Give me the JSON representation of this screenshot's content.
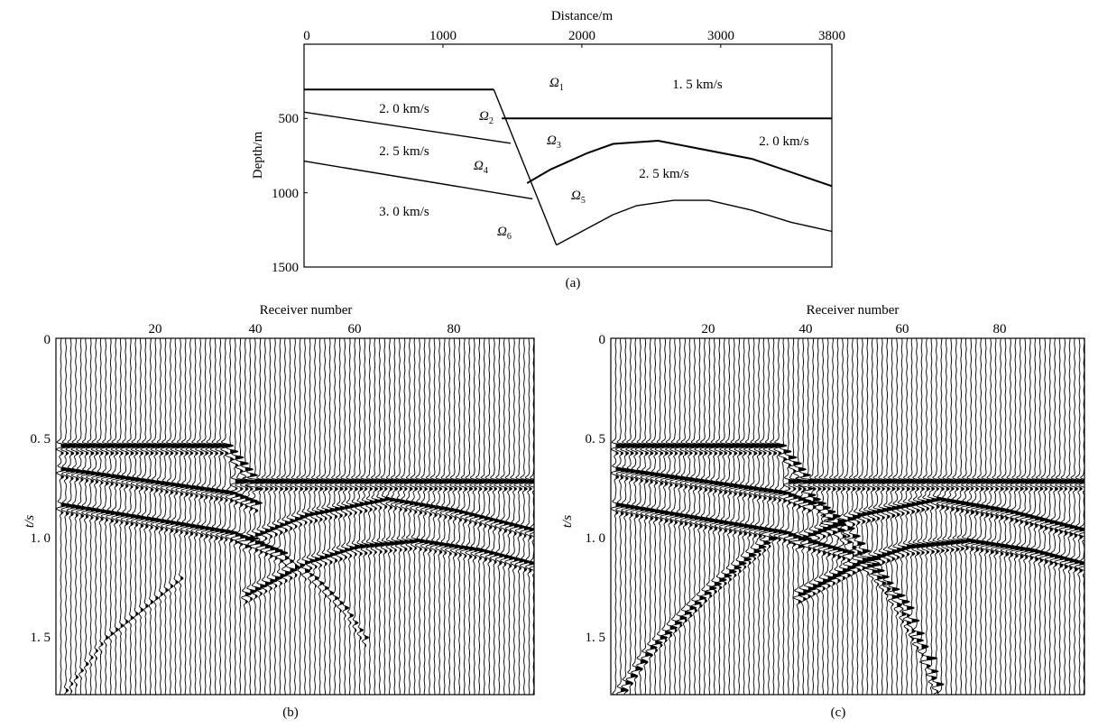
{
  "panel_a": {
    "caption": "(a)",
    "xlabel": "Distance/m",
    "ylabel": "Depth/m",
    "xticks": [
      "0",
      "1000",
      "2000",
      "3000",
      "3800"
    ],
    "yticks": [
      "500",
      "1000",
      "1500"
    ],
    "xlim": [
      0,
      3800
    ],
    "ylim": [
      0,
      1500
    ],
    "regions": [
      {
        "symbol": "Ω",
        "index": "1"
      },
      {
        "symbol": "Ω",
        "index": "2"
      },
      {
        "symbol": "Ω",
        "index": "3"
      },
      {
        "symbol": "Ω",
        "index": "4"
      },
      {
        "symbol": "Ω",
        "index": "5"
      },
      {
        "symbol": "Ω",
        "index": "6"
      }
    ],
    "velocities": [
      "1. 5 km/s",
      "2. 0 km/s",
      "2. 0 km/s",
      "2. 5 km/s",
      "2. 5 km/s",
      "3. 0 km/s"
    ],
    "boundaries": [
      {
        "name": "top-left",
        "points": [
          [
            0,
            305
          ],
          [
            1366,
            305
          ]
        ]
      },
      {
        "name": "top-right",
        "points": [
          [
            1423,
            500
          ],
          [
            3800,
            500
          ]
        ]
      },
      {
        "name": "fault",
        "points": [
          [
            1366,
            305
          ],
          [
            1817,
            1352
          ]
        ]
      },
      {
        "name": "omega2-omega4",
        "points": [
          [
            0,
            457
          ],
          [
            1487,
            667
          ]
        ]
      },
      {
        "name": "omega4-omega6",
        "points": [
          [
            0,
            787
          ],
          [
            1645,
            1041
          ]
        ]
      },
      {
        "name": "omega3-omega5",
        "points": [
          [
            1606,
            935
          ],
          [
            1775,
            843
          ],
          [
            2042,
            732
          ],
          [
            2225,
            671
          ],
          [
            2549,
            650
          ],
          [
            3225,
            772
          ],
          [
            3800,
            955
          ]
        ]
      },
      {
        "name": "omega5-omega6",
        "points": [
          [
            1817,
            1352
          ],
          [
            2225,
            1148
          ],
          [
            2394,
            1087
          ],
          [
            2662,
            1051
          ],
          [
            2915,
            1051
          ],
          [
            3225,
            1118
          ],
          [
            3507,
            1199
          ],
          [
            3800,
            1260
          ]
        ]
      }
    ]
  },
  "chart_data": [
    {
      "type": "wiggle",
      "caption": "(b)",
      "xlabel": "Receiver number",
      "ylabel": "t/s",
      "xticks": [
        "20",
        "40",
        "60",
        "80"
      ],
      "yticks": [
        "0",
        "0. 5",
        "1. 0",
        "1. 5"
      ],
      "receivers": [
        1,
        96
      ],
      "tlim": [
        0,
        1.8
      ],
      "events": [
        {
          "amp": 1.0,
          "picks": [
            [
              1,
              0.53
            ],
            [
              34,
              0.53
            ],
            [
              40,
              0.71
            ]
          ]
        },
        {
          "amp": 1.0,
          "picks": [
            [
              36,
              0.71
            ],
            [
              96,
              0.71
            ]
          ]
        },
        {
          "amp": 0.9,
          "picks": [
            [
              1,
              0.65
            ],
            [
              35,
              0.77
            ],
            [
              40,
              0.82
            ]
          ]
        },
        {
          "amp": 0.9,
          "picks": [
            [
              1,
              0.83
            ],
            [
              35,
              0.97
            ],
            [
              38,
              1.0
            ],
            [
              45,
              1.07
            ]
          ]
        },
        {
          "amp": 0.8,
          "picks": [
            [
              38,
              1.0
            ],
            [
              50,
              0.88
            ],
            [
              66,
              0.8
            ],
            [
              80,
              0.86
            ],
            [
              96,
              0.96
            ]
          ]
        },
        {
          "amp": 0.8,
          "picks": [
            [
              38,
              1.28
            ],
            [
              50,
              1.12
            ],
            [
              60,
              1.04
            ],
            [
              72,
              1.01
            ],
            [
              85,
              1.06
            ],
            [
              96,
              1.13
            ]
          ]
        },
        {
          "amp": 0.45,
          "picks": [
            [
              45,
              1.08
            ],
            [
              52,
              1.2
            ],
            [
              58,
              1.35
            ],
            [
              62,
              1.5
            ]
          ]
        },
        {
          "amp": 0.3,
          "picks": [
            [
              1,
              1.8
            ],
            [
              10,
              1.5
            ],
            [
              25,
              1.2
            ]
          ]
        }
      ]
    },
    {
      "type": "wiggle",
      "caption": "(c)",
      "xlabel": "Receiver number",
      "ylabel": "t/s",
      "xticks": [
        "20",
        "40",
        "60",
        "80"
      ],
      "yticks": [
        "0",
        "0. 5",
        "1. 0",
        "1. 5"
      ],
      "receivers": [
        1,
        96
      ],
      "tlim": [
        0,
        1.8
      ],
      "events": [
        {
          "amp": 1.0,
          "picks": [
            [
              1,
              0.53
            ],
            [
              34,
              0.53
            ],
            [
              40,
              0.71
            ]
          ]
        },
        {
          "amp": 1.0,
          "picks": [
            [
              36,
              0.71
            ],
            [
              96,
              0.71
            ]
          ]
        },
        {
          "amp": 0.95,
          "picks": [
            [
              1,
              0.65
            ],
            [
              35,
              0.77
            ],
            [
              40,
              0.82
            ]
          ]
        },
        {
          "amp": 0.95,
          "picks": [
            [
              1,
              0.83
            ],
            [
              35,
              0.97
            ],
            [
              38,
              1.0
            ],
            [
              48,
              1.07
            ]
          ]
        },
        {
          "amp": 1.0,
          "picks": [
            [
              38,
              1.0
            ],
            [
              50,
              0.88
            ],
            [
              66,
              0.8
            ],
            [
              80,
              0.86
            ],
            [
              96,
              0.96
            ]
          ]
        },
        {
          "amp": 1.0,
          "picks": [
            [
              38,
              1.28
            ],
            [
              50,
              1.12
            ],
            [
              60,
              1.04
            ],
            [
              72,
              1.01
            ],
            [
              85,
              1.06
            ],
            [
              96,
              1.13
            ]
          ]
        },
        {
          "amp": 0.95,
          "picks": [
            [
              40,
              0.78
            ],
            [
              48,
              0.95
            ],
            [
              52,
              1.1
            ],
            [
              60,
              1.35
            ],
            [
              67,
              1.8
            ]
          ]
        },
        {
          "amp": 0.6,
          "picks": [
            [
              44,
              0.9
            ],
            [
              56,
              1.25
            ],
            [
              64,
              1.6
            ],
            [
              66,
              1.8
            ]
          ]
        },
        {
          "amp": 0.85,
          "picks": [
            [
              1,
              1.8
            ],
            [
              8,
              1.55
            ],
            [
              20,
              1.25
            ],
            [
              32,
              1.0
            ]
          ]
        }
      ]
    }
  ]
}
